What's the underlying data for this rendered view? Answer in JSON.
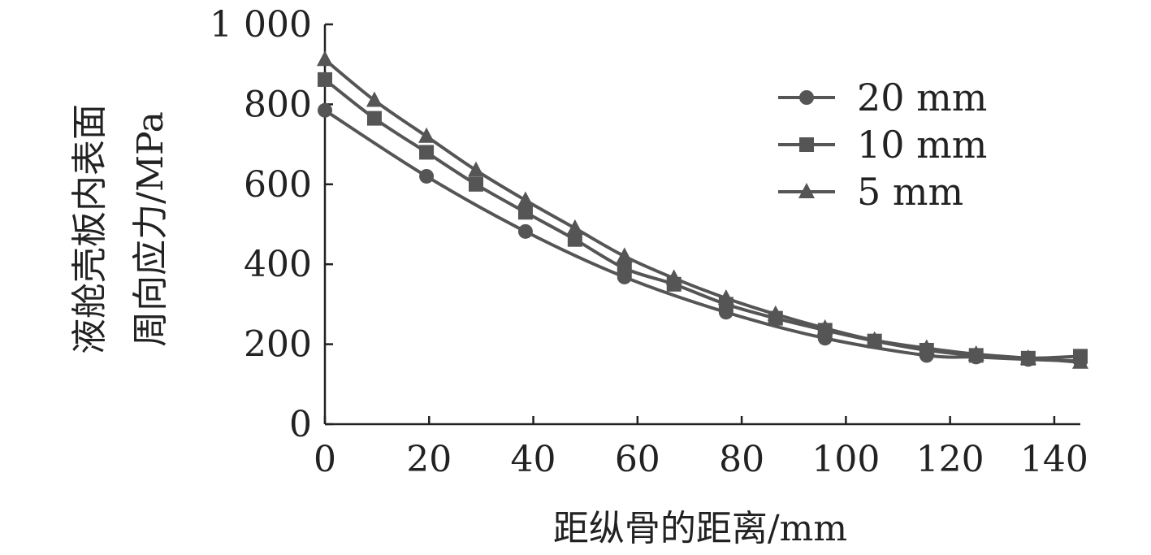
{
  "chart_data": {
    "type": "line",
    "xlabel": "距纵骨的距离/mm",
    "ylabel_lines": [
      "液舱壳板内表面",
      "周向应力/MPa"
    ],
    "xlim": [
      0,
      145
    ],
    "ylim": [
      0,
      1000
    ],
    "x_ticks": [
      0,
      20,
      40,
      60,
      80,
      100,
      120,
      140
    ],
    "y_ticks": [
      0,
      200,
      400,
      600,
      800,
      1000
    ],
    "y_tick_labels": [
      "0",
      "200",
      "400",
      "600",
      "800",
      "1 000"
    ],
    "x_tick_labels": [
      "0",
      "20",
      "40",
      "60",
      "80",
      "100",
      "120",
      "140"
    ],
    "legend_position": "top-right",
    "grid": false,
    "line_color": "#555555",
    "series": [
      {
        "name": "20 mm",
        "marker": "circle",
        "x": [
          0,
          19.5,
          38.5,
          57.5,
          77,
          96,
          115.5,
          125,
          135,
          145
        ],
        "y": [
          785,
          620,
          482,
          368,
          280,
          215,
          172,
          168,
          162,
          158
        ]
      },
      {
        "name": "10 mm",
        "marker": "square",
        "x": [
          0,
          9.5,
          19.5,
          29,
          38.5,
          48,
          57.5,
          67,
          77,
          86.5,
          96,
          105.5,
          115.5,
          125,
          135,
          145
        ],
        "y": [
          862,
          765,
          680,
          600,
          530,
          462,
          390,
          350,
          300,
          265,
          235,
          208,
          185,
          172,
          165,
          170
        ]
      },
      {
        "name": "5 mm",
        "marker": "triangle",
        "x": [
          0,
          9.5,
          19.5,
          29,
          38.5,
          48,
          57.5,
          67,
          77,
          86.5,
          96,
          105.5,
          115.5,
          125,
          135,
          145
        ],
        "y": [
          912,
          810,
          720,
          635,
          560,
          490,
          420,
          365,
          315,
          275,
          240,
          210,
          190,
          175,
          165,
          155
        ]
      }
    ]
  }
}
